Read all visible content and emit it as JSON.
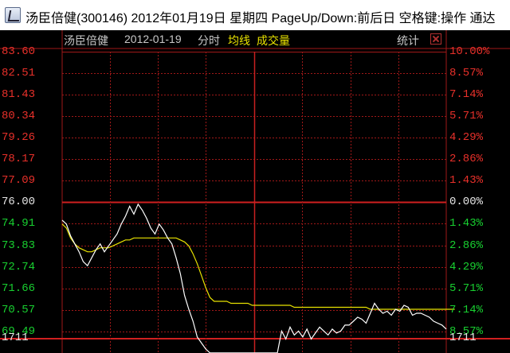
{
  "window": {
    "title": "汤臣倍健(300146) 2012年01月19日 星期四 PageUp/Down:前后日 空格键:操作 通达"
  },
  "header": {
    "stock_name": "汤臣倍健",
    "date": "2012-01-19",
    "view_mode": "分时",
    "avg_line_label": "均线",
    "volume_label": "成交量",
    "stats_label": "统计"
  },
  "colors": {
    "up": "#e8302a",
    "down": "#18d030",
    "grid": "#a01818",
    "price_line": "#ffffff",
    "avg_line": "#e8e200"
  },
  "chart_data": {
    "type": "line",
    "x": "time (intraday minutes)",
    "y_price_ticks": [
      "83.60",
      "82.51",
      "81.43",
      "80.34",
      "79.26",
      "78.17",
      "77.09",
      "76.00",
      "74.91",
      "73.83",
      "72.74",
      "71.66",
      "70.57",
      "69.49"
    ],
    "y_pct_ticks": [
      "10.00%",
      "8.57%",
      "7.14%",
      "5.71%",
      "4.29%",
      "2.86%",
      "1.43%",
      "0.00%",
      "1.43%",
      "2.86%",
      "4.29%",
      "5.71%",
      "7.14%",
      "8.57%"
    ],
    "prev_close": 76.0,
    "ylim": [
      68.4,
      83.6
    ],
    "volume_tick": "1711",
    "volume_tick_right": "1711",
    "series": [
      {
        "values": [
          75.1,
          74.9,
          74.3,
          73.9,
          73.5,
          73.0,
          72.8,
          73.2,
          73.6,
          73.9,
          73.5,
          73.8,
          74.1,
          74.4,
          74.9,
          75.3,
          75.8,
          75.4,
          75.9,
          75.6,
          75.2,
          74.7,
          74.4,
          74.9,
          74.6,
          74.2,
          73.9,
          73.2,
          72.4,
          71.3,
          70.6,
          70.0,
          69.2,
          68.9,
          68.6,
          68.4,
          68.4,
          68.4,
          68.4,
          68.4,
          68.4,
          68.4,
          68.4,
          68.4,
          68.4,
          68.4,
          68.4,
          68.4,
          68.4,
          68.4,
          68.4,
          68.4,
          69.5,
          69.1,
          69.7,
          69.3,
          69.5,
          69.2,
          69.6,
          69.1,
          69.4,
          69.7,
          69.5,
          69.3,
          69.6,
          69.4,
          69.5,
          69.8,
          69.8,
          70.0,
          70.2,
          70.1,
          69.9,
          70.4,
          70.9,
          70.6,
          70.4,
          70.5,
          70.3,
          70.6,
          70.5,
          70.8,
          70.7,
          70.3,
          70.4,
          70.4,
          70.3,
          70.2,
          70.0,
          69.9,
          69.8,
          69.6
        ]
      },
      {
        "values": [
          74.9,
          74.7,
          74.2,
          73.9,
          73.7,
          73.6,
          73.5,
          73.5,
          73.6,
          73.7,
          73.7,
          73.7,
          73.8,
          73.9,
          74.0,
          74.1,
          74.1,
          74.2,
          74.2,
          74.2,
          74.2,
          74.2,
          74.2,
          74.2,
          74.2,
          74.2,
          74.2,
          74.2,
          74.1,
          74.0,
          73.8,
          73.4,
          72.9,
          72.3,
          71.7,
          71.2,
          71.0,
          71.0,
          71.0,
          71.0,
          70.9,
          70.9,
          70.9,
          70.9,
          70.9,
          70.8,
          70.8,
          70.8,
          70.8,
          70.8,
          70.8,
          70.8,
          70.8,
          70.8,
          70.8,
          70.7,
          70.7,
          70.7,
          70.7,
          70.7,
          70.7,
          70.7,
          70.7,
          70.7,
          70.7,
          70.7,
          70.7,
          70.7,
          70.7,
          70.7,
          70.7,
          70.7,
          70.7,
          70.6,
          70.6,
          70.6,
          70.6,
          70.6,
          70.6,
          70.6,
          70.6,
          70.6,
          70.6,
          70.6,
          70.6,
          70.6,
          70.6,
          70.6,
          70.6,
          70.6,
          70.6,
          70.6,
          70.6,
          70.6
        ]
      }
    ]
  }
}
